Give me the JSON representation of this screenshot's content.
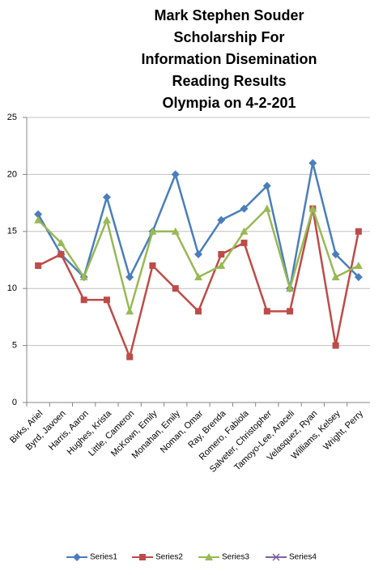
{
  "chart_data": {
    "type": "line",
    "title": [
      "Mark Stephen Souder",
      "Scholarship For",
      "Information Disemination",
      "Reading Results",
      "Olympia on 4-2-201"
    ],
    "categories": [
      "Birks, Ariel",
      "Byrd, Javoen",
      "Harris, Aaron",
      "Hughes, Krista",
      "Little, Cameron",
      "McKown, Emily",
      "Monahan, Emily",
      "Noman, Omar",
      "Ray, Brenda",
      "Romero, Fabiola",
      "Salveter, Christopher",
      "Tamoyo-Lee, Araceli",
      "Velasquez, Ryan",
      "Williams, Kelsey",
      "Wright, Perry"
    ],
    "series": [
      {
        "name": "Series1",
        "color": "#4a7ebb",
        "marker": "diamond",
        "values": [
          16.5,
          13,
          11,
          18,
          11,
          15,
          20,
          13,
          16,
          17,
          19,
          10,
          21,
          13,
          11
        ]
      },
      {
        "name": "Series2",
        "color": "#be4b48",
        "marker": "square",
        "values": [
          12,
          13,
          9,
          9,
          4,
          12,
          10,
          8,
          13,
          14,
          8,
          8,
          17,
          5,
          15
        ]
      },
      {
        "name": "Series3",
        "color": "#98b954",
        "marker": "triangle",
        "values": [
          16,
          14,
          11,
          16,
          8,
          15,
          15,
          11,
          12,
          15,
          17,
          10,
          17,
          11,
          12
        ]
      },
      {
        "name": "Series4",
        "color": "#7d60a0",
        "marker": "x",
        "values": [
          null,
          null,
          null,
          null,
          null,
          null,
          null,
          null,
          null,
          null,
          null,
          null,
          null,
          null,
          null
        ]
      }
    ],
    "ylim": [
      0,
      25
    ],
    "yticks": [
      0,
      5,
      10,
      15,
      20,
      25
    ],
    "grid": true,
    "legend": "bottom"
  }
}
